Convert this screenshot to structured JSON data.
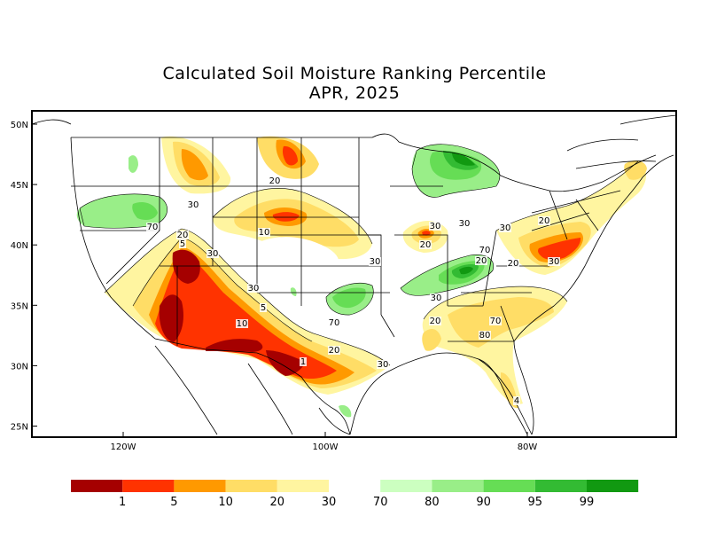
{
  "title": "Calculated Soil Moisture Ranking Percentile",
  "subtitle": "APR, 2025",
  "y_axis_labels": [
    {
      "text": "50N",
      "lat": 50
    },
    {
      "text": "45N",
      "lat": 45
    },
    {
      "text": "40N",
      "lat": 40
    },
    {
      "text": "35N",
      "lat": 35
    },
    {
      "text": "30N",
      "lat": 30
    },
    {
      "text": "25N",
      "lat": 25
    }
  ],
  "x_axis_labels": [
    {
      "text": "120W",
      "lon": -120
    },
    {
      "text": "100W",
      "lon": -100
    },
    {
      "text": "80W",
      "lon": -80
    }
  ],
  "contour_labels": [
    "20",
    "30",
    "70",
    "20",
    "5",
    "30",
    "10",
    "20",
    "30",
    "30",
    "30",
    "5",
    "10",
    "20",
    "30",
    "1",
    "70",
    "20",
    "30",
    "70",
    "30",
    "20",
    "70",
    "80",
    "30",
    "20",
    "30",
    "20",
    "4"
  ],
  "legend": {
    "colors": [
      "#a50000",
      "#ff3300",
      "#ff9900",
      "#ffdd66",
      "#fff5a0",
      "#ffffff",
      "#ccffc0",
      "#99ee88",
      "#66dd55",
      "#33bb33",
      "#119911"
    ],
    "labels": [
      "1",
      "5",
      "10",
      "20",
      "30",
      "70",
      "80",
      "90",
      "95",
      "99"
    ]
  },
  "colors": {
    "dry_extreme": "#a50000",
    "dry_severe": "#ff3300",
    "dry_moderate": "#ff9900",
    "dry_light": "#ffdd66",
    "dry_slight": "#fff5a0",
    "wet_slight": "#ccffc0",
    "wet_light": "#99ee88",
    "wet_moderate": "#66dd55",
    "wet_high": "#33bb33",
    "wet_extreme": "#119911"
  }
}
